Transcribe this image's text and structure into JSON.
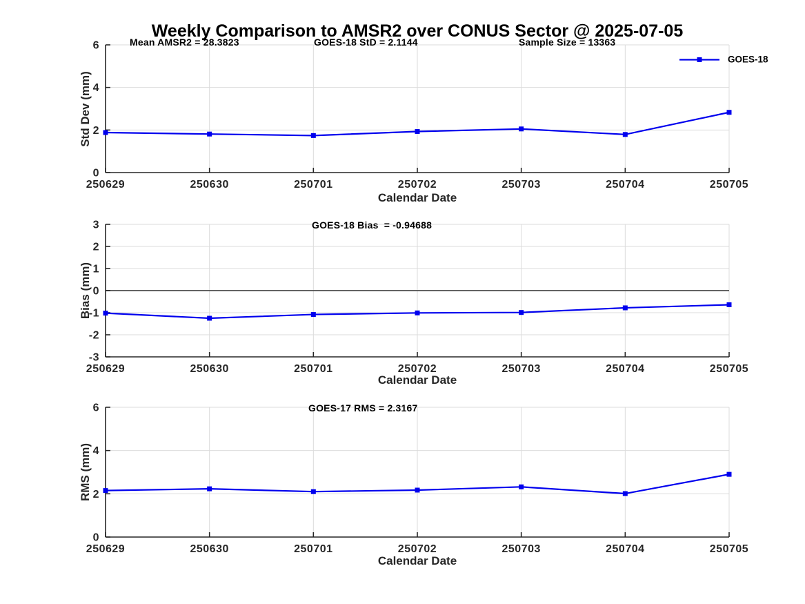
{
  "title": "Weekly Comparison to AMSR2 over CONUS Sector @ 2025-07-05",
  "legend": {
    "label": "GOES-18"
  },
  "colors": {
    "series": "#0000EE",
    "axis": "#262626",
    "grid": "#DBDBDB",
    "zero_line": "#4D4D4D",
    "text": "#000000",
    "background": "#FFFFFF"
  },
  "chart_data": [
    {
      "type": "line",
      "name": "stddev",
      "categories": [
        "250629",
        "250630",
        "250701",
        "250702",
        "250703",
        "250704",
        "250705"
      ],
      "series": [
        {
          "name": "GOES-18",
          "values": [
            1.88,
            1.81,
            1.74,
            1.93,
            2.05,
            1.79,
            2.83
          ]
        }
      ],
      "annotations": [
        "Mean AMSR2 = 28.3823",
        "GOES-18 StD = 2.1144",
        "Sample Size = 13363"
      ],
      "xlabel": "Calendar Date",
      "ylabel": "Std Dev (mm)",
      "ylim": [
        0,
        6
      ],
      "yticks": [
        0,
        2,
        4,
        6
      ],
      "grid": true,
      "zero_line": false,
      "legend_position": "top-right"
    },
    {
      "type": "line",
      "name": "bias",
      "categories": [
        "250629",
        "250630",
        "250701",
        "250702",
        "250703",
        "250704",
        "250705"
      ],
      "series": [
        {
          "name": "GOES-18",
          "values": [
            -1.02,
            -1.25,
            -1.08,
            -1.01,
            -0.99,
            -0.78,
            -0.64
          ]
        }
      ],
      "annotations": [
        "GOES-18 Bias  = -0.94688"
      ],
      "xlabel": "Calendar Date",
      "ylabel": "Bias (mm)",
      "ylim": [
        -3,
        3
      ],
      "yticks": [
        -3,
        -2,
        -1,
        0,
        1,
        2,
        3
      ],
      "grid": true,
      "zero_line": true,
      "legend_position": "none"
    },
    {
      "type": "line",
      "name": "rms",
      "categories": [
        "250629",
        "250630",
        "250701",
        "250702",
        "250703",
        "250704",
        "250705"
      ],
      "series": [
        {
          "name": "GOES-18",
          "values": [
            2.15,
            2.23,
            2.1,
            2.17,
            2.32,
            2.01,
            2.9
          ]
        }
      ],
      "annotations": [
        "GOES-17 RMS = 2.3167"
      ],
      "xlabel": "Calendar Date",
      "ylabel": "RMS (mm)",
      "ylim": [
        0,
        6
      ],
      "yticks": [
        0,
        2,
        4,
        6
      ],
      "grid": true,
      "zero_line": false,
      "legend_position": "none"
    }
  ]
}
